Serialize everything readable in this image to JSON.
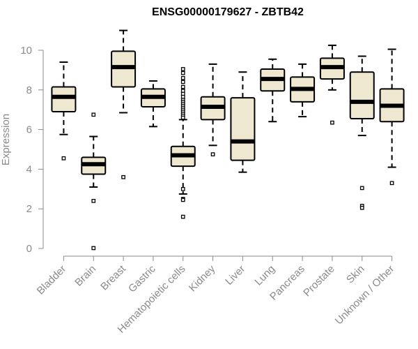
{
  "chart_data": {
    "type": "boxplot",
    "title": "ENSG00000179627 - ZBTB42",
    "ylabel": "Expression",
    "xlabel": "",
    "ylim": [
      0,
      11.2
    ],
    "yticks": [
      0,
      2,
      4,
      6,
      8,
      10
    ],
    "colors": {
      "box_fill": "#efe8d1",
      "box_stroke": "#000000",
      "axis": "#8a8a8a"
    },
    "categories": [
      "Bladder",
      "Brain",
      "Breast",
      "Gastric",
      "Hematopoietic cells",
      "Kidney",
      "Liver",
      "Lung",
      "Pancreas",
      "Prostate",
      "Skin",
      "Unknown / Other"
    ],
    "boxes": [
      {
        "name": "Bladder",
        "min": 5.75,
        "q1": 6.9,
        "median": 7.65,
        "q3": 8.15,
        "max": 9.4,
        "outliers": [
          4.55
        ]
      },
      {
        "name": "Brain",
        "min": 3.1,
        "q1": 3.75,
        "median": 4.25,
        "q3": 4.6,
        "max": 5.65,
        "outliers": [
          6.75,
          2.4,
          0.02
        ]
      },
      {
        "name": "Breast",
        "min": 6.85,
        "q1": 8.15,
        "median": 9.15,
        "q3": 9.95,
        "max": 11.0,
        "outliers": [
          3.6
        ]
      },
      {
        "name": "Gastric",
        "min": 6.15,
        "q1": 7.15,
        "median": 7.65,
        "q3": 8.05,
        "max": 8.45,
        "outliers": []
      },
      {
        "name": "Hematopoietic cells",
        "min": 2.75,
        "q1": 4.15,
        "median": 4.7,
        "q3": 5.15,
        "max": 6.5,
        "outliers": [
          9.05,
          8.85,
          8.6,
          8.4,
          8.15,
          7.95,
          7.8,
          7.65,
          7.5,
          7.4,
          7.3,
          7.2,
          7.1,
          7.0,
          6.9,
          6.8,
          6.7,
          6.6,
          3.0,
          2.5,
          2.45,
          1.6
        ]
      },
      {
        "name": "Kidney",
        "min": 5.2,
        "q1": 6.5,
        "median": 7.15,
        "q3": 7.65,
        "max": 9.3,
        "outliers": [
          4.75
        ]
      },
      {
        "name": "Liver",
        "min": 3.85,
        "q1": 4.45,
        "median": 5.4,
        "q3": 7.6,
        "max": 8.9,
        "outliers": []
      },
      {
        "name": "Lung",
        "min": 6.4,
        "q1": 7.95,
        "median": 8.55,
        "q3": 9.05,
        "max": 9.55,
        "outliers": []
      },
      {
        "name": "Pancreas",
        "min": 6.65,
        "q1": 7.4,
        "median": 8.05,
        "q3": 8.65,
        "max": 9.3,
        "outliers": []
      },
      {
        "name": "Prostate",
        "min": 8.0,
        "q1": 8.55,
        "median": 9.15,
        "q3": 9.6,
        "max": 10.25,
        "outliers": [
          6.35
        ]
      },
      {
        "name": "Skin",
        "min": 5.7,
        "q1": 6.55,
        "median": 7.4,
        "q3": 8.9,
        "max": 9.7,
        "outliers": [
          3.05,
          2.15,
          2.05
        ]
      },
      {
        "name": "Unknown / Other",
        "min": 4.1,
        "q1": 6.4,
        "median": 7.2,
        "q3": 8.05,
        "max": 10.05,
        "outliers": [
          3.3
        ]
      }
    ]
  }
}
